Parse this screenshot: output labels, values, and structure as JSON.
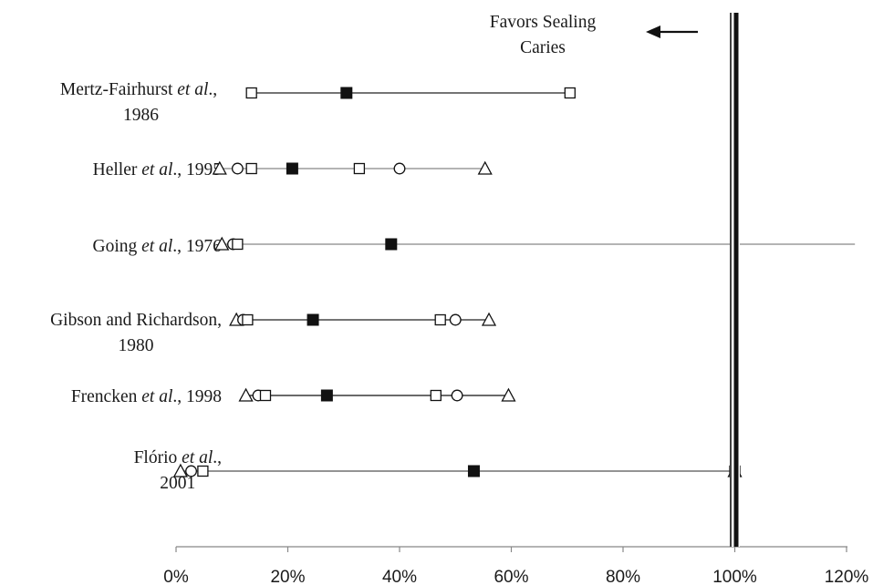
{
  "chart_data": {
    "type": "scatter",
    "title": "",
    "xlabel": "",
    "ylabel": "",
    "xlim": [
      0,
      120
    ],
    "x_ticks": [
      0,
      20,
      40,
      60,
      80,
      100,
      120
    ],
    "x_tick_suffix": "%",
    "reference_line": {
      "x": 100,
      "style": "thick double black vertical line"
    },
    "annotation": {
      "lines": [
        "Favors Sealing",
        "Caries"
      ],
      "arrow": "left"
    },
    "marker_legend": {
      "filled-square": "solid black square",
      "open-square": "open square",
      "open-circle": "open circle",
      "open-triangle": "open triangle"
    },
    "studies": [
      {
        "label": [
          {
            "lines": [
              [
                {
                  "t": "Mertz-Fairhurst "
                },
                {
                  "t": "et al",
                  "i": true
                },
                {
                  "t": "., "
                }
              ],
              [
                {
                  "t": "1986"
                }
              ]
            ]
          }
        ],
        "line_range": [
          13,
          71
        ],
        "line_color": "#222222",
        "markers": [
          {
            "shape": "open-square",
            "x": 13.5
          },
          {
            "shape": "filled-square",
            "x": 30.5
          },
          {
            "shape": "open-square",
            "x": 70.5
          }
        ]
      },
      {
        "label": [
          {
            "lines": [
              [
                {
                  "t": "Heller "
                },
                {
                  "t": "et al",
                  "i": true
                },
                {
                  "t": "., 1995"
                }
              ]
            ]
          }
        ],
        "line_range": [
          8,
          55
        ],
        "line_color": "#888888",
        "markers": [
          {
            "shape": "open-triangle",
            "x": 7.8
          },
          {
            "shape": "open-circle",
            "x": 11
          },
          {
            "shape": "open-square",
            "x": 13.5
          },
          {
            "shape": "filled-square",
            "x": 20.8
          },
          {
            "shape": "open-square",
            "x": 32.8
          },
          {
            "shape": "open-circle",
            "x": 40
          },
          {
            "shape": "open-triangle",
            "x": 55.3
          }
        ]
      },
      {
        "label": [
          {
            "lines": [
              [
                {
                  "t": "Going "
                },
                {
                  "t": "et al",
                  "i": true
                },
                {
                  "t": "., 1976"
                }
              ]
            ]
          }
        ],
        "line_range": [
          8,
          121.5
        ],
        "line_color": "#888888",
        "markers": [
          {
            "shape": "open-triangle",
            "x": 8.2
          },
          {
            "shape": "open-circle",
            "x": 10.2
          },
          {
            "shape": "open-square",
            "x": 11
          },
          {
            "shape": "filled-square",
            "x": 38.5
          }
        ]
      },
      {
        "label": [
          {
            "lines": [
              [
                {
                  "t": "Gibson and Richardson,"
                }
              ],
              [
                {
                  "t": "1980"
                }
              ]
            ]
          }
        ],
        "line_range": [
          11,
          56
        ],
        "line_color": "#222222",
        "markers": [
          {
            "shape": "open-triangle",
            "x": 10.8
          },
          {
            "shape": "open-circle",
            "x": 12
          },
          {
            "shape": "open-square",
            "x": 12.8
          },
          {
            "shape": "filled-square",
            "x": 24.5
          },
          {
            "shape": "open-square",
            "x": 47.3
          },
          {
            "shape": "open-circle",
            "x": 50
          },
          {
            "shape": "open-triangle",
            "x": 56
          }
        ]
      },
      {
        "label": [
          {
            "lines": [
              [
                {
                  "t": "Frencken "
                },
                {
                  "t": "et al",
                  "i": true
                },
                {
                  "t": "., 1998"
                }
              ]
            ]
          }
        ],
        "line_range": [
          12.5,
          59.5
        ],
        "line_color": "#111111",
        "markers": [
          {
            "shape": "open-triangle",
            "x": 12.5
          },
          {
            "shape": "open-circle",
            "x": 14.7
          },
          {
            "shape": "open-square",
            "x": 16
          },
          {
            "shape": "filled-square",
            "x": 27
          },
          {
            "shape": "open-square",
            "x": 46.5
          },
          {
            "shape": "open-circle",
            "x": 50.3
          },
          {
            "shape": "open-triangle",
            "x": 59.5
          }
        ]
      },
      {
        "label": [
          {
            "lines": [
              [
                {
                  "t": "Flório "
                },
                {
                  "t": "et al",
                  "i": true
                },
                {
                  "t": ".,"
                }
              ],
              [
                {
                  "t": "2001"
                }
              ]
            ]
          }
        ],
        "line_range": [
          0.5,
          100
        ],
        "line_color": "#555555",
        "markers": [
          {
            "shape": "open-triangle",
            "x": 0.8
          },
          {
            "shape": "open-circle",
            "x": 2.7
          },
          {
            "shape": "open-square",
            "x": 4.8
          },
          {
            "shape": "filled-square",
            "x": 53.3
          },
          {
            "shape": "open-square",
            "x": 100
          },
          {
            "shape": "open-triangle",
            "x": 100
          }
        ]
      }
    ]
  }
}
